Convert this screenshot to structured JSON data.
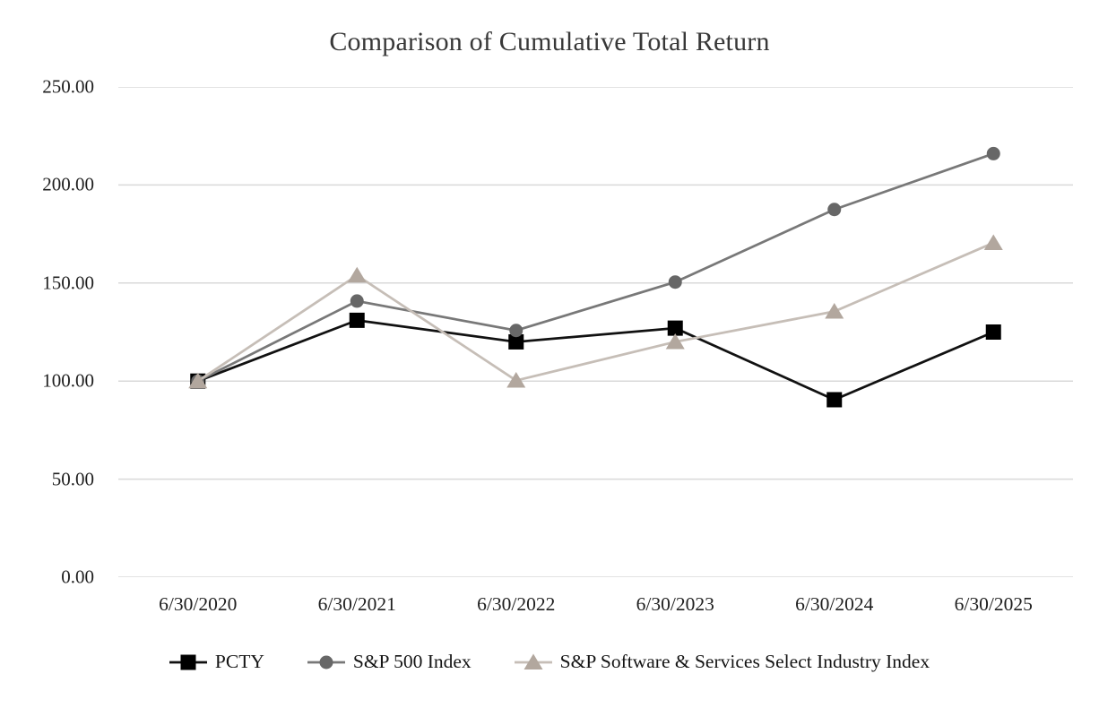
{
  "chart_data": {
    "type": "line",
    "title": "Comparison of Cumulative Total Return",
    "xlabel": "",
    "ylabel": "",
    "x_categories": [
      "6/30/2020",
      "6/30/2021",
      "6/30/2022",
      "6/30/2023",
      "6/30/2024",
      "6/30/2025"
    ],
    "y_tick_labels": [
      "250.00",
      "200.00",
      "150.00",
      "100.00",
      "50.00",
      "0.00"
    ],
    "ylim": [
      0,
      250
    ],
    "grid": "horizontal-only",
    "legend_position": "bottom",
    "series": [
      {
        "name": "PCTY",
        "marker": "square",
        "marker_color": "#000000",
        "line_color": "#111111",
        "values": [
          100.0,
          131.0,
          120.0,
          127.0,
          90.5,
          125.0
        ]
      },
      {
        "name": "S&P 500 Index",
        "marker": "circle",
        "marker_color": "#676767",
        "line_color": "#787878",
        "values": [
          100.0,
          140.8,
          125.8,
          150.5,
          187.5,
          216.0
        ]
      },
      {
        "name": "S&P Software & Services Select Industry Index",
        "marker": "triangle",
        "marker_color": "#b2a79e",
        "line_color": "#c6beb7",
        "values": [
          100.0,
          153.9,
          100.3,
          120.0,
          135.5,
          170.5
        ]
      }
    ]
  },
  "colors": {
    "background": "#ffffff",
    "gridline": "#d9d9d9",
    "title_text": "#383838",
    "axis_text": "#1f1f1f"
  }
}
